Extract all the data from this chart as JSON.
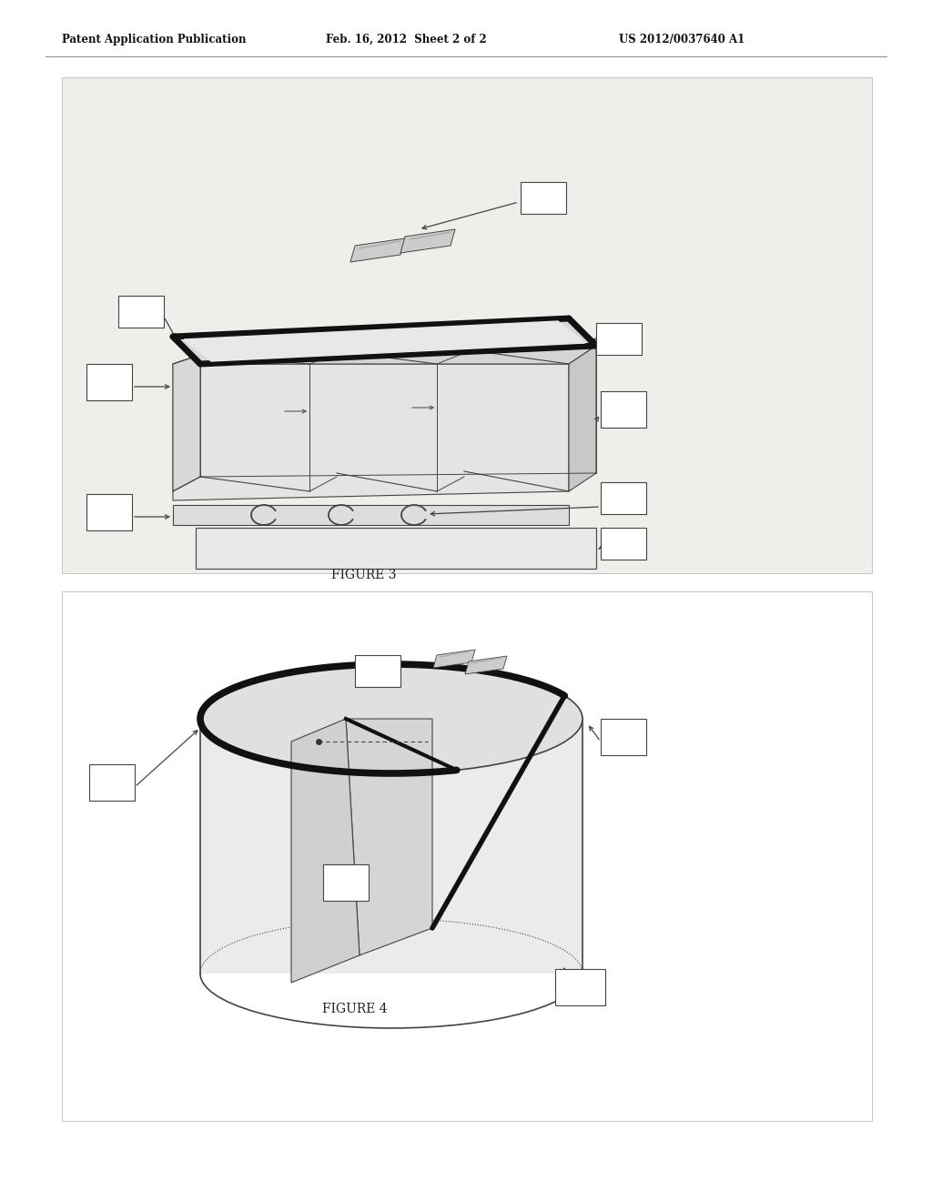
{
  "bg_color": "#ffffff",
  "fig_bg": "#f0eeeb",
  "header_text": "Patent Application Publication",
  "header_date": "Feb. 16, 2012  Sheet 2 of 2",
  "header_patent": "US 2012/0037640 A1",
  "figure3_label": "FIGURE 3",
  "figure4_label": "FIGURE 4",
  "label_color": "#222222",
  "box_bg": "#ffffff",
  "line_color": "#555555",
  "dark_line": "#111111",
  "sketch_color": "#444444"
}
